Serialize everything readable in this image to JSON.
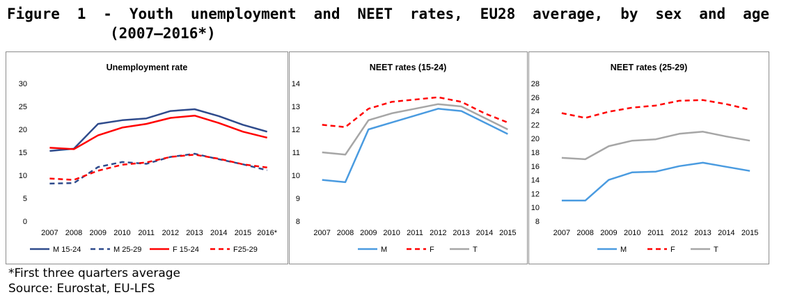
{
  "figure": {
    "title_line1": "Figure 1 - Youth unemployment and NEET rates, EU28 average, by sex and age",
    "title_line2": "(2007–2016*)",
    "note": "*First three quarters average",
    "source": "Source: Eurostat, EU-LFS"
  },
  "colors": {
    "dark_blue": "#2f4b8c",
    "red": "#ff0000",
    "light_blue": "#4a9be0",
    "grey": "#a6a6a6"
  },
  "chart_data": [
    {
      "type": "line",
      "title": "Unemployment rate",
      "x": [
        "2007",
        "2008",
        "2009",
        "2010",
        "2011",
        "2012",
        "2013",
        "2014",
        "2015",
        "2016*"
      ],
      "ylim": [
        0,
        30
      ],
      "yticks": [
        0,
        5,
        10,
        15,
        20,
        25,
        30
      ],
      "grid": false,
      "legend": "bottom",
      "series": [
        {
          "name": "M 15-24",
          "color": "#2f4b8c",
          "dash": "solid",
          "values": [
            15.3,
            15.8,
            21.2,
            22.0,
            22.4,
            24.0,
            24.4,
            22.9,
            21.0,
            19.5
          ]
        },
        {
          "name": "M 25-29",
          "color": "#2f4b8c",
          "dash": "dashed",
          "values": [
            8.2,
            8.3,
            11.8,
            12.9,
            12.5,
            14.0,
            14.7,
            13.5,
            12.4,
            11.1
          ]
        },
        {
          "name": "F 15-24",
          "color": "#ff0000",
          "dash": "solid",
          "values": [
            16.0,
            15.7,
            18.7,
            20.4,
            21.2,
            22.5,
            23.0,
            21.4,
            19.5,
            18.2
          ]
        },
        {
          "name": "F25-29",
          "color": "#ff0000",
          "dash": "dashed",
          "values": [
            9.3,
            9.0,
            11.0,
            12.3,
            12.8,
            14.0,
            14.5,
            13.6,
            12.4,
            11.7
          ]
        }
      ]
    },
    {
      "type": "line",
      "title": "NEET rates (15-24)",
      "x": [
        "2007",
        "2008",
        "2009",
        "2010",
        "2011",
        "2012",
        "2013",
        "2014",
        "2015"
      ],
      "ylim": [
        8,
        14
      ],
      "yticks": [
        8,
        9,
        10,
        11,
        12,
        13,
        14
      ],
      "grid": false,
      "legend": "bottom",
      "series": [
        {
          "name": "M",
          "color": "#4a9be0",
          "dash": "solid",
          "values": [
            9.8,
            9.7,
            12.0,
            12.3,
            12.6,
            12.9,
            12.8,
            12.3,
            11.8
          ]
        },
        {
          "name": "F",
          "color": "#ff0000",
          "dash": "dashed",
          "values": [
            12.2,
            12.1,
            12.9,
            13.2,
            13.3,
            13.4,
            13.2,
            12.7,
            12.3
          ]
        },
        {
          "name": "T",
          "color": "#a6a6a6",
          "dash": "solid",
          "values": [
            11.0,
            10.9,
            12.4,
            12.7,
            12.9,
            13.1,
            13.0,
            12.5,
            12.0
          ]
        }
      ]
    },
    {
      "type": "line",
      "title": "NEET rates (25-29)",
      "x": [
        "2007",
        "2008",
        "2009",
        "2010",
        "2011",
        "2012",
        "2013",
        "2014",
        "2015"
      ],
      "ylim": [
        8,
        28
      ],
      "yticks": [
        8,
        10,
        12,
        14,
        16,
        18,
        20,
        22,
        24,
        26,
        28
      ],
      "grid": false,
      "legend": "bottom",
      "series": [
        {
          "name": "M",
          "color": "#4a9be0",
          "dash": "solid",
          "values": [
            11.0,
            11.0,
            14.0,
            15.1,
            15.2,
            16.0,
            16.5,
            15.9,
            15.3
          ]
        },
        {
          "name": "F",
          "color": "#ff0000",
          "dash": "dashed",
          "values": [
            23.7,
            23.0,
            23.9,
            24.5,
            24.8,
            25.5,
            25.6,
            25.0,
            24.2
          ]
        },
        {
          "name": "T",
          "color": "#a6a6a6",
          "dash": "solid",
          "values": [
            17.2,
            17.0,
            18.9,
            19.7,
            19.9,
            20.7,
            21.0,
            20.3,
            19.7
          ]
        }
      ]
    }
  ]
}
